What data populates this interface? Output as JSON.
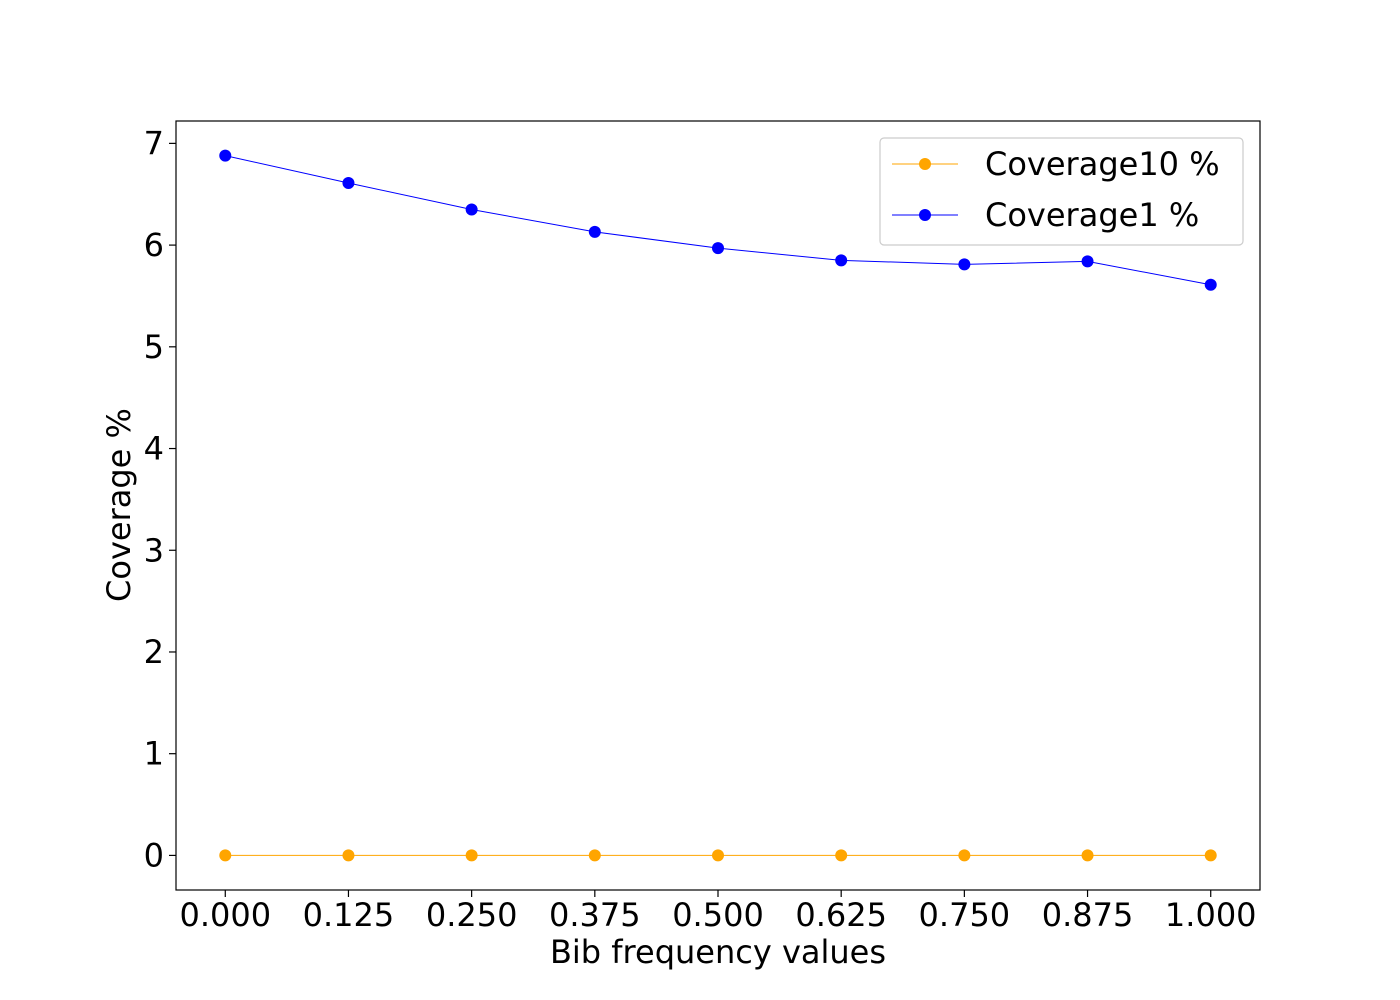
{
  "chart_data": {
    "type": "line",
    "title": "",
    "xlabel": "Bib frequency values",
    "ylabel": "Coverage %",
    "x": [
      0.0,
      0.125,
      0.25,
      0.375,
      0.5,
      0.625,
      0.75,
      0.875,
      1.0
    ],
    "xticks": [
      "0.000",
      "0.125",
      "0.250",
      "0.375",
      "0.500",
      "0.625",
      "0.750",
      "0.875",
      "1.000"
    ],
    "yticks": [
      "0",
      "1",
      "2",
      "3",
      "4",
      "5",
      "6",
      "7"
    ],
    "xlim": [
      -0.05,
      1.05
    ],
    "ylim": [
      -0.34,
      7.22
    ],
    "grid": false,
    "legend_position": "top-right",
    "series": [
      {
        "name": "Coverage10 %",
        "color": "#ffa500",
        "values": [
          0,
          0,
          0,
          0,
          0,
          0,
          0,
          0,
          0
        ]
      },
      {
        "name": "Coverage1 %",
        "color": "#0000ff",
        "values": [
          6.88,
          6.61,
          6.35,
          6.13,
          5.97,
          5.85,
          5.81,
          5.84,
          5.61
        ]
      }
    ]
  }
}
